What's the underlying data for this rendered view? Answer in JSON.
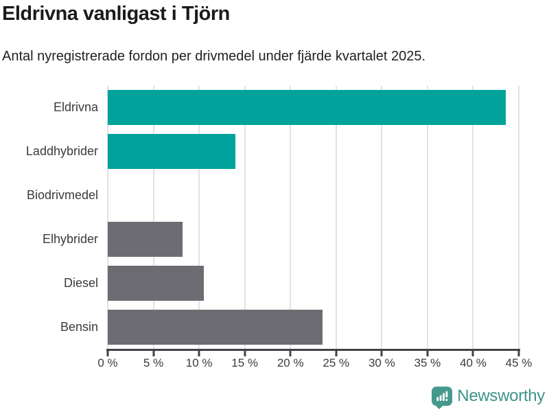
{
  "title": "Eldrivna vanligast i Tjörn",
  "subtitle": "Antal nyregistrerade fordon per drivmedel under fjärde kvartalet 2025.",
  "chart_data": {
    "type": "bar",
    "orientation": "horizontal",
    "categories": [
      "Eldrivna",
      "Laddhybrider",
      "Biodrivmedel",
      "Elhybrider",
      "Diesel",
      "Bensin"
    ],
    "values": [
      43.6,
      14.0,
      0,
      8.2,
      10.5,
      23.5
    ],
    "unit": "%",
    "series_colors": [
      "#00a39b",
      "#00a39b",
      "#6c6c72",
      "#6c6c72",
      "#6c6c72",
      "#6c6c72"
    ],
    "title": "Eldrivna vanligast i Tjörn",
    "xlabel": "",
    "ylabel": "",
    "xlim": [
      0,
      45
    ],
    "x_tick_values": [
      0,
      5,
      10,
      15,
      20,
      25,
      30,
      35,
      40,
      45
    ],
    "x_tick_labels": [
      "0 %",
      "5 %",
      "10 %",
      "15 %",
      "20 %",
      "25 %",
      "30 %",
      "35 %",
      "40 %",
      "45 %"
    ],
    "grid": true,
    "legend": false
  },
  "colors": {
    "accent_teal": "#00a39b",
    "neutral_gray": "#6c6c72",
    "gridline": "#e2e2e4",
    "axis": "#414146",
    "text_dark": "#1b1b1b",
    "axis_text": "#3c3c40",
    "brand_teal": "#3e9488"
  },
  "footer": {
    "brand": "Newsworthy",
    "logo_icon": "bar-chart-speech-bubble-icon"
  }
}
